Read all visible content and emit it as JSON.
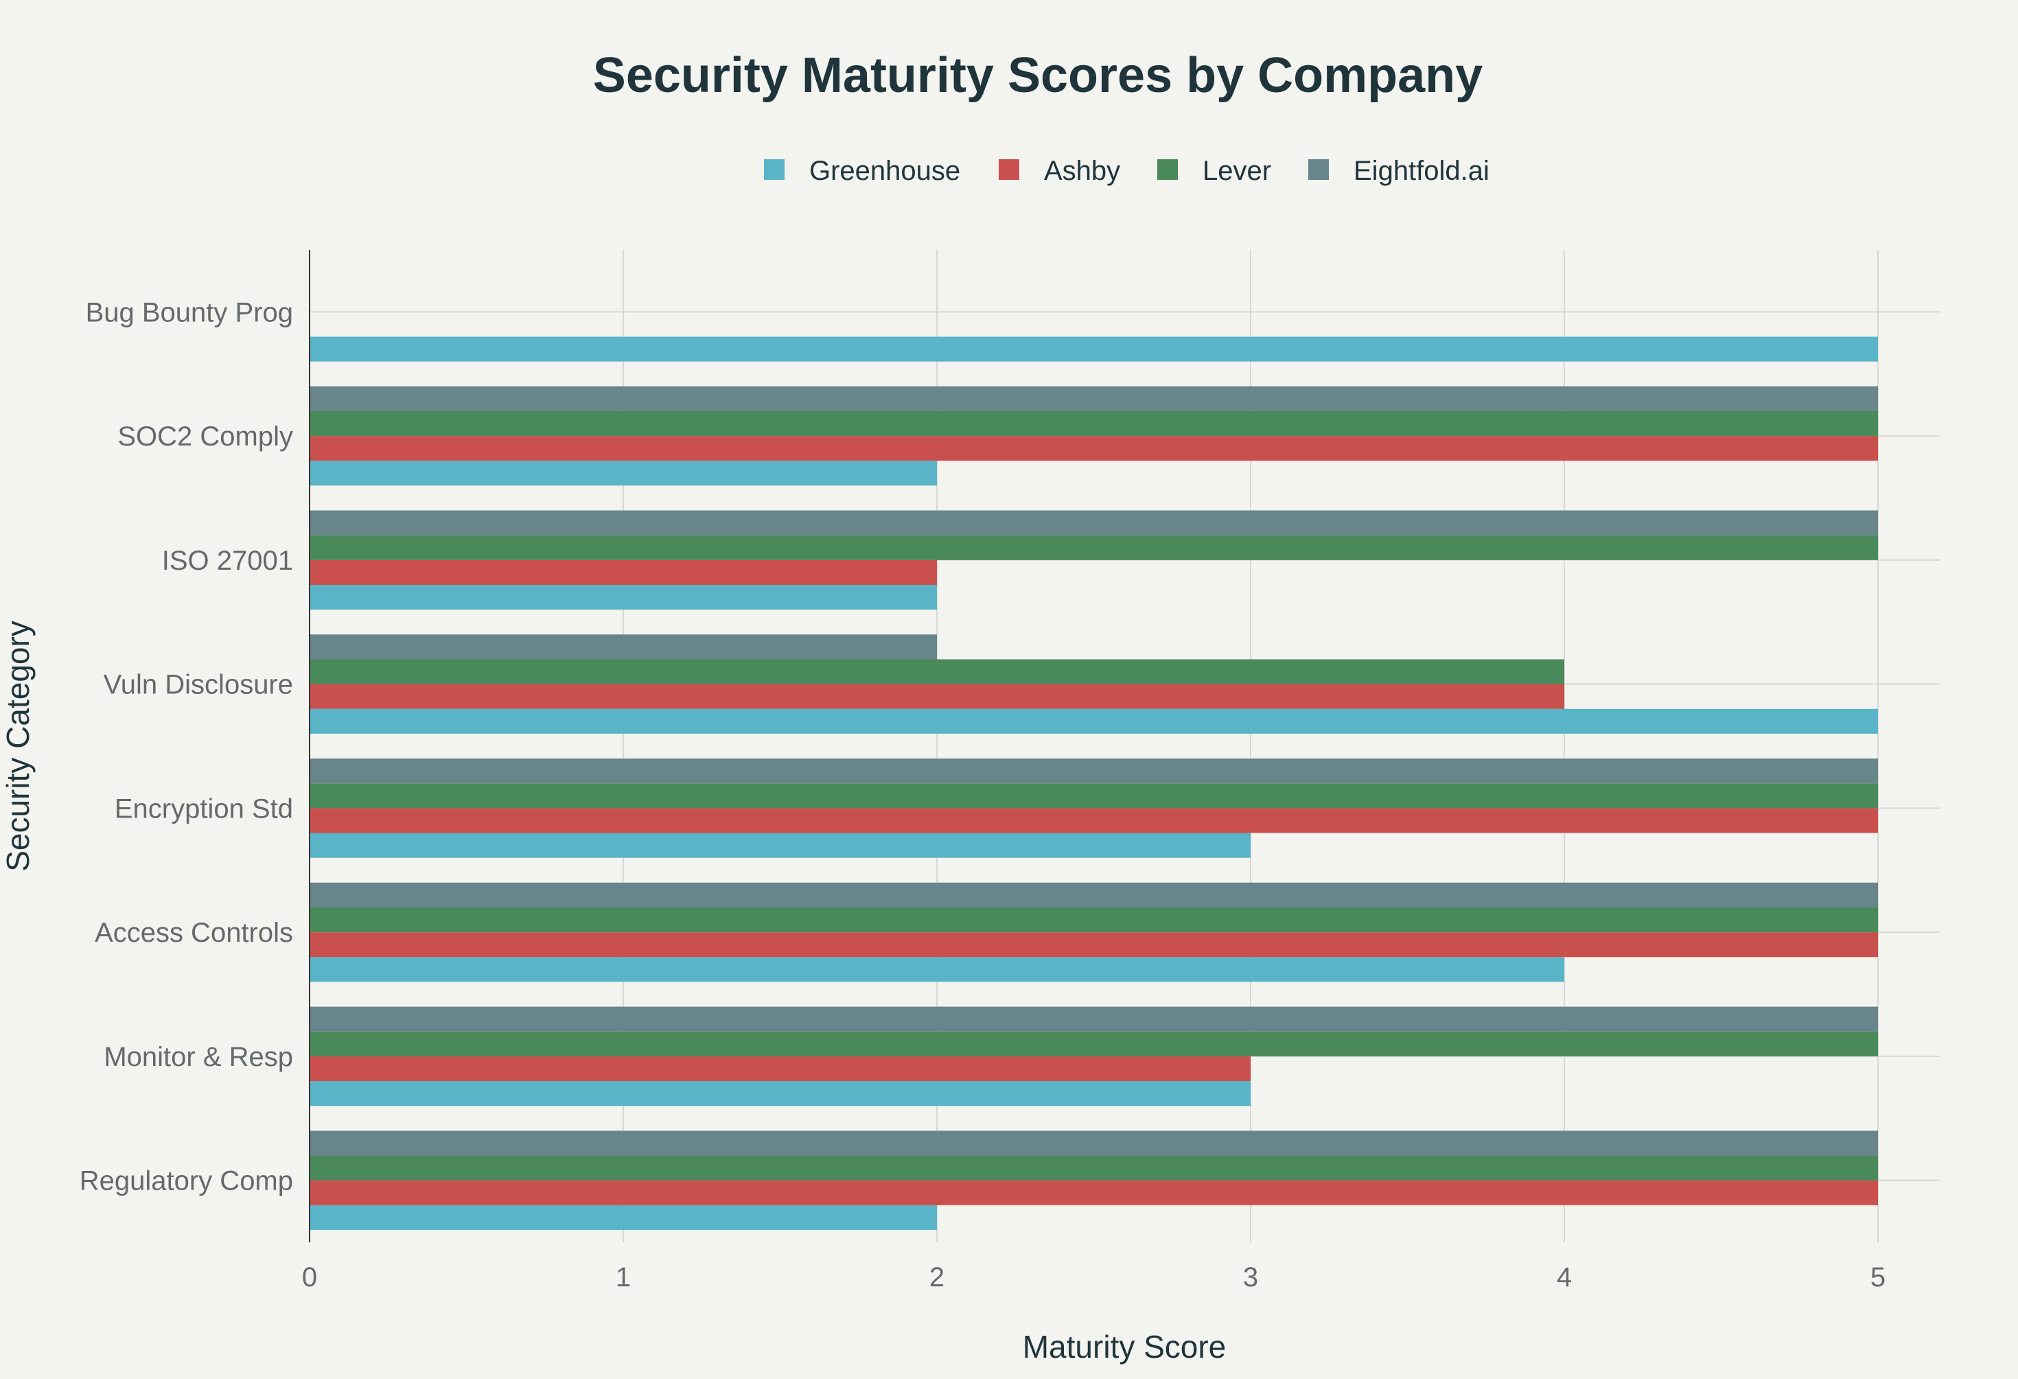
{
  "chart_data": {
    "type": "bar",
    "orientation": "horizontal",
    "title": "Security Maturity Scores by Company",
    "xlabel": "Maturity Score",
    "ylabel": "Security Category",
    "xlim": [
      0,
      5.2
    ],
    "xticks": [
      "0",
      "1",
      "2",
      "3",
      "4",
      "5"
    ],
    "grid": true,
    "legend_position": "top-center",
    "categories": [
      "Bug Bounty Prog",
      "SOC2 Comply",
      "ISO 27001",
      "Vuln Disclosure",
      "Encryption Std",
      "Access Controls",
      "Monitor & Resp",
      "Regulatory Comp"
    ],
    "series": [
      {
        "name": "Greenhouse",
        "color": "#5ab4c8",
        "values": [
          5,
          2,
          2,
          5,
          3,
          4,
          3,
          2
        ]
      },
      {
        "name": "Ashby",
        "color": "#c9504c",
        "values": [
          0,
          5,
          2,
          4,
          5,
          5,
          3,
          5
        ]
      },
      {
        "name": "Lever",
        "color": "#4a8a5a",
        "values": [
          0,
          5,
          5,
          4,
          5,
          5,
          5,
          5
        ]
      },
      {
        "name": "Eightfold.ai",
        "color": "#67858b",
        "values": [
          0,
          5,
          5,
          2,
          5,
          5,
          5,
          5
        ]
      }
    ],
    "colors": {
      "background": "#f3f3ef",
      "title": "#1f343b",
      "axis_text": "#66696b",
      "grid": "#d8d8d3",
      "axis_line": "#333333"
    }
  }
}
